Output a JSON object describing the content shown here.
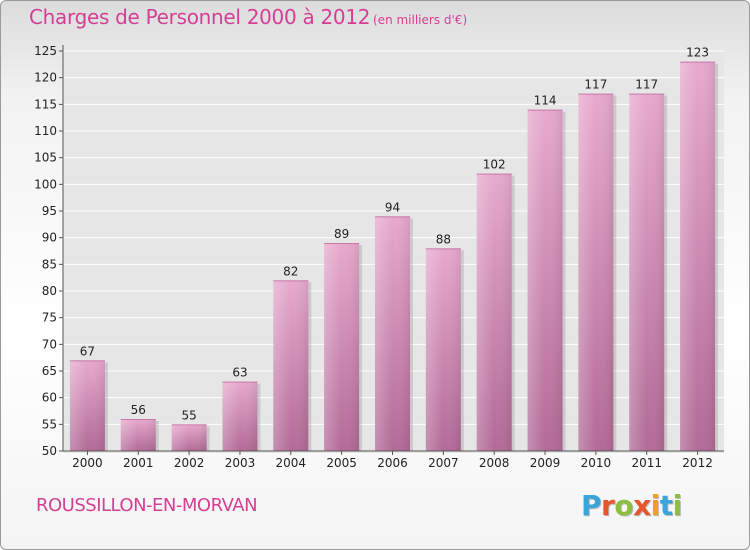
{
  "header": {
    "title": "Charges de Personnel 2000 à 2012",
    "subtitle": "(en milliers d'€)"
  },
  "footer": {
    "place": "ROUSSILLON-EN-MORVAN",
    "logo_letters": [
      "P",
      "r",
      "o",
      "x",
      "i",
      "t",
      "i"
    ],
    "logo_colors": [
      "#3aa5dc",
      "#e8552a",
      "#8cbf3f",
      "#e8552a",
      "#f0a020",
      "#3aa5dc",
      "#8cbf3f"
    ]
  },
  "chart_data": {
    "type": "bar",
    "title": "Charges de Personnel 2000 à 2012",
    "subtitle": "(en milliers d'€)",
    "categories": [
      "2000",
      "2001",
      "2002",
      "2003",
      "2004",
      "2005",
      "2006",
      "2007",
      "2008",
      "2009",
      "2010",
      "2011",
      "2012"
    ],
    "values": [
      67,
      56,
      55,
      63,
      82,
      89,
      94,
      88,
      102,
      114,
      117,
      117,
      123
    ],
    "ylim": [
      50,
      125
    ],
    "yticks": [
      50,
      55,
      60,
      65,
      70,
      75,
      80,
      85,
      90,
      95,
      100,
      105,
      110,
      115,
      120,
      125
    ],
    "grid": true,
    "bar_color": "#d98fba",
    "xlabel": "",
    "ylabel": ""
  }
}
